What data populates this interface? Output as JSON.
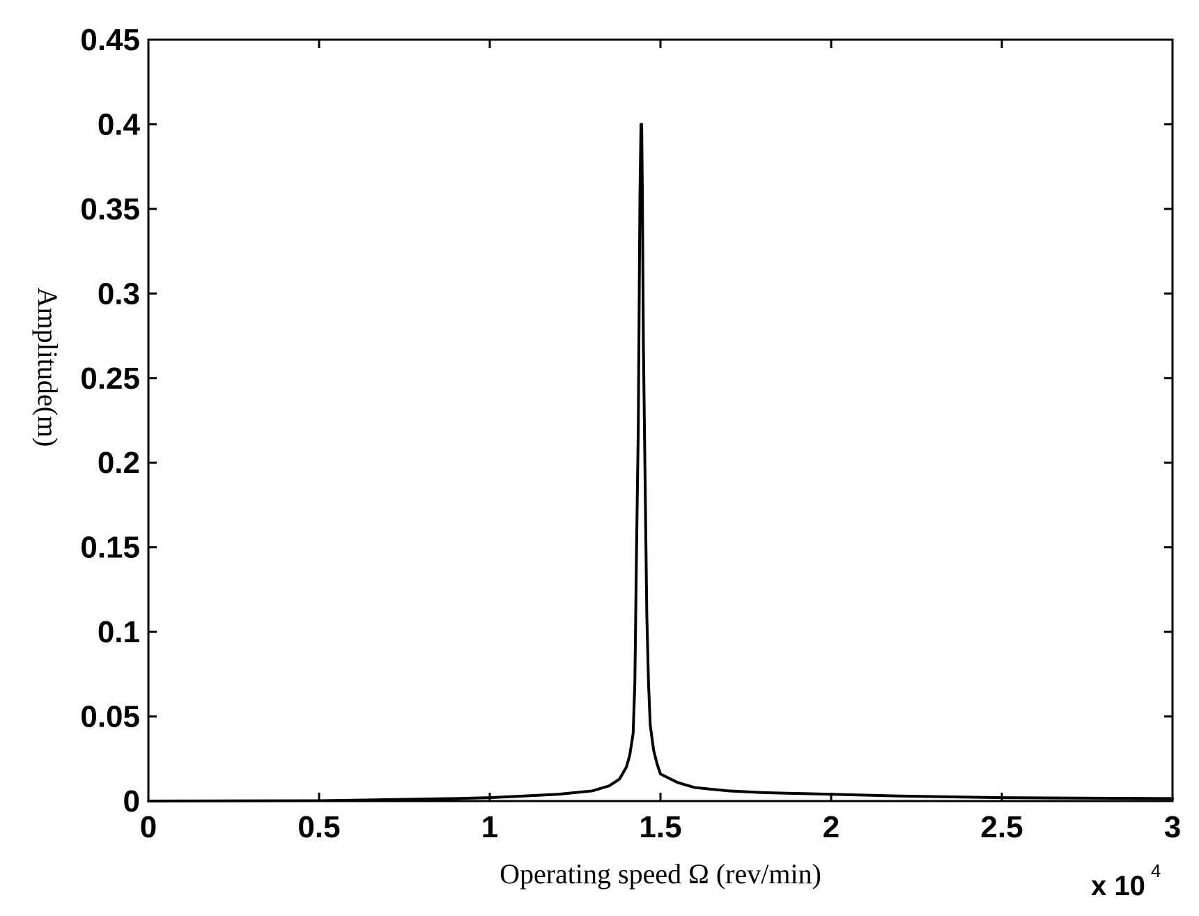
{
  "chart_data": {
    "type": "line",
    "title": "",
    "xlabel": "Operating speed Ω (rev/min)",
    "ylabel": "Amplitude(m)",
    "x_exponent_label": {
      "base": "x 10",
      "power": "4"
    },
    "x_scale_factor": 10000,
    "xlim": [
      0,
      3
    ],
    "ylim": [
      0,
      0.45
    ],
    "xticks": [
      0,
      0.5,
      1,
      1.5,
      2,
      2.5,
      3
    ],
    "xtick_labels": [
      "0",
      "0.5",
      "1",
      "1.5",
      "2",
      "2.5",
      "3"
    ],
    "yticks": [
      0,
      0.05,
      0.1,
      0.15,
      0.2,
      0.25,
      0.3,
      0.35,
      0.4,
      0.45
    ],
    "ytick_labels": [
      "0",
      "0.05",
      "0.1",
      "0.15",
      "0.2",
      "0.25",
      "0.3",
      "0.35",
      "0.4",
      "0.45"
    ],
    "grid": false,
    "line_color": "#000000",
    "series": [
      {
        "x": [
          0,
          0.5,
          0.9,
          1.0,
          1.1,
          1.2,
          1.3,
          1.35,
          1.38,
          1.4,
          1.41,
          1.42,
          1.425,
          1.43,
          1.435,
          1.44,
          1.443,
          1.445,
          1.447,
          1.45,
          1.455,
          1.46,
          1.465,
          1.47,
          1.48,
          1.49,
          1.5,
          1.55,
          1.6,
          1.7,
          1.8,
          2.0,
          2.2,
          2.5,
          3.0
        ],
        "y": [
          0,
          0.0002,
          0.0015,
          0.002,
          0.003,
          0.004,
          0.006,
          0.009,
          0.013,
          0.02,
          0.027,
          0.04,
          0.07,
          0.15,
          0.22,
          0.36,
          0.4,
          0.4,
          0.36,
          0.27,
          0.19,
          0.11,
          0.07,
          0.045,
          0.03,
          0.022,
          0.016,
          0.011,
          0.008,
          0.006,
          0.005,
          0.004,
          0.003,
          0.002,
          0.0015
        ]
      }
    ]
  }
}
